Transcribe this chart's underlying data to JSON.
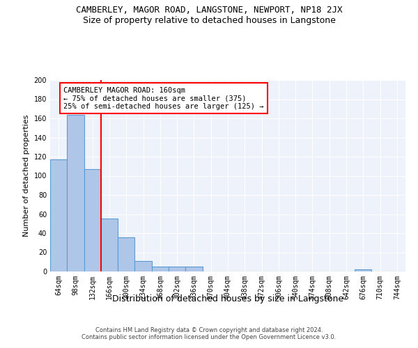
{
  "title": "CAMBERLEY, MAGOR ROAD, LANGSTONE, NEWPORT, NP18 2JX",
  "subtitle": "Size of property relative to detached houses in Langstone",
  "xlabel": "Distribution of detached houses by size in Langstone",
  "ylabel": "Number of detached properties",
  "footer_line1": "Contains HM Land Registry data © Crown copyright and database right 2024.",
  "footer_line2": "Contains public sector information licensed under the Open Government Licence v3.0.",
  "bar_labels": [
    "64sqm",
    "98sqm",
    "132sqm",
    "166sqm",
    "200sqm",
    "234sqm",
    "268sqm",
    "302sqm",
    "336sqm",
    "370sqm",
    "404sqm",
    "438sqm",
    "472sqm",
    "506sqm",
    "540sqm",
    "574sqm",
    "608sqm",
    "642sqm",
    "676sqm",
    "710sqm",
    "744sqm"
  ],
  "bar_values": [
    117,
    164,
    107,
    55,
    36,
    11,
    5,
    5,
    5,
    0,
    0,
    0,
    0,
    0,
    0,
    0,
    0,
    0,
    2,
    0,
    0
  ],
  "bar_color": "#aec6e8",
  "bar_edge_color": "#5b9bd5",
  "bar_edge_width": 0.8,
  "red_line_x": 2.5,
  "annotation_text": "CAMBERLEY MAGOR ROAD: 160sqm\n← 75% of detached houses are smaller (375)\n25% of semi-detached houses are larger (125) →",
  "annotation_box_color": "white",
  "annotation_border_color": "red",
  "ylim": [
    0,
    200
  ],
  "yticks": [
    0,
    20,
    40,
    60,
    80,
    100,
    120,
    140,
    160,
    180,
    200
  ],
  "bg_color": "#eef2fa",
  "grid_color": "white",
  "title_fontsize": 9,
  "subtitle_fontsize": 9,
  "xlabel_fontsize": 9,
  "ylabel_fontsize": 8,
  "tick_fontsize": 7,
  "annotation_fontsize": 7.5,
  "footer_fontsize": 6
}
